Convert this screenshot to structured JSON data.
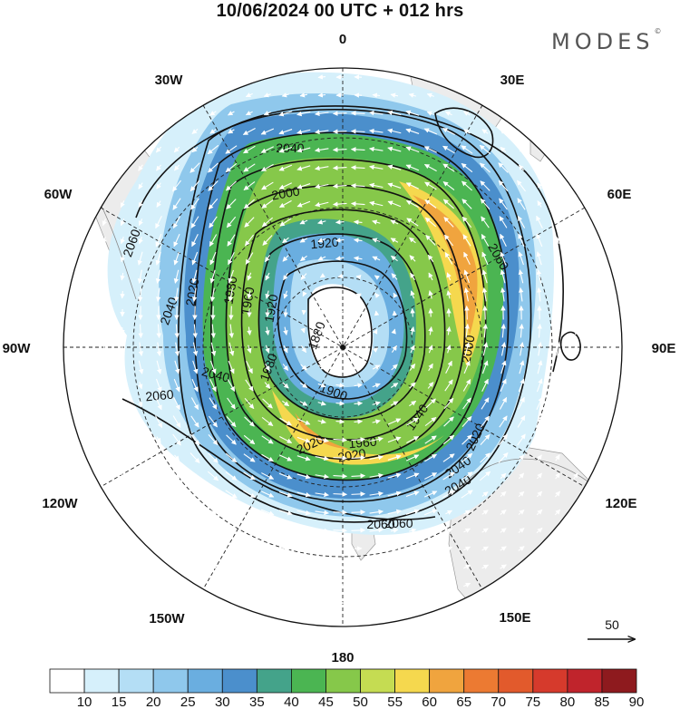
{
  "header": {
    "title": "10/06/2024  00 UTC  + 012 hrs",
    "brand": "MODES",
    "brand_mark": "©"
  },
  "map": {
    "projection": "south-polar-stereographic",
    "longitude_labels": [
      "0",
      "30E",
      "60E",
      "90E",
      "120E",
      "150E",
      "180",
      "150W",
      "120W",
      "90W",
      "60W",
      "30W"
    ],
    "contour_labels": [
      "2040",
      "2000",
      "1920",
      "2060",
      "2040",
      "2020",
      "1980",
      "1960",
      "1920",
      "1880",
      "2060",
      "2040",
      "1980",
      "1900",
      "2060",
      "2060",
      "2040",
      "2020",
      "2000",
      "1940",
      "2020",
      "1960",
      "2020",
      "2040",
      "2060"
    ],
    "wind_reference": {
      "value": "50"
    }
  },
  "colorbar": {
    "labels": [
      "10",
      "15",
      "20",
      "25",
      "30",
      "35",
      "40",
      "45",
      "50",
      "55",
      "60",
      "65",
      "70",
      "75",
      "80",
      "85",
      "90"
    ],
    "colors": [
      "#ffffff",
      "#d6f0fb",
      "#b4def5",
      "#8fc8ec",
      "#6aaee0",
      "#4b8fcc",
      "#44a38a",
      "#4bb552",
      "#86c84a",
      "#c5dc52",
      "#f5d84e",
      "#f0a43e",
      "#ec7a32",
      "#e25a2c",
      "#d63a2c",
      "#c0242c",
      "#8e1a1e"
    ]
  }
}
